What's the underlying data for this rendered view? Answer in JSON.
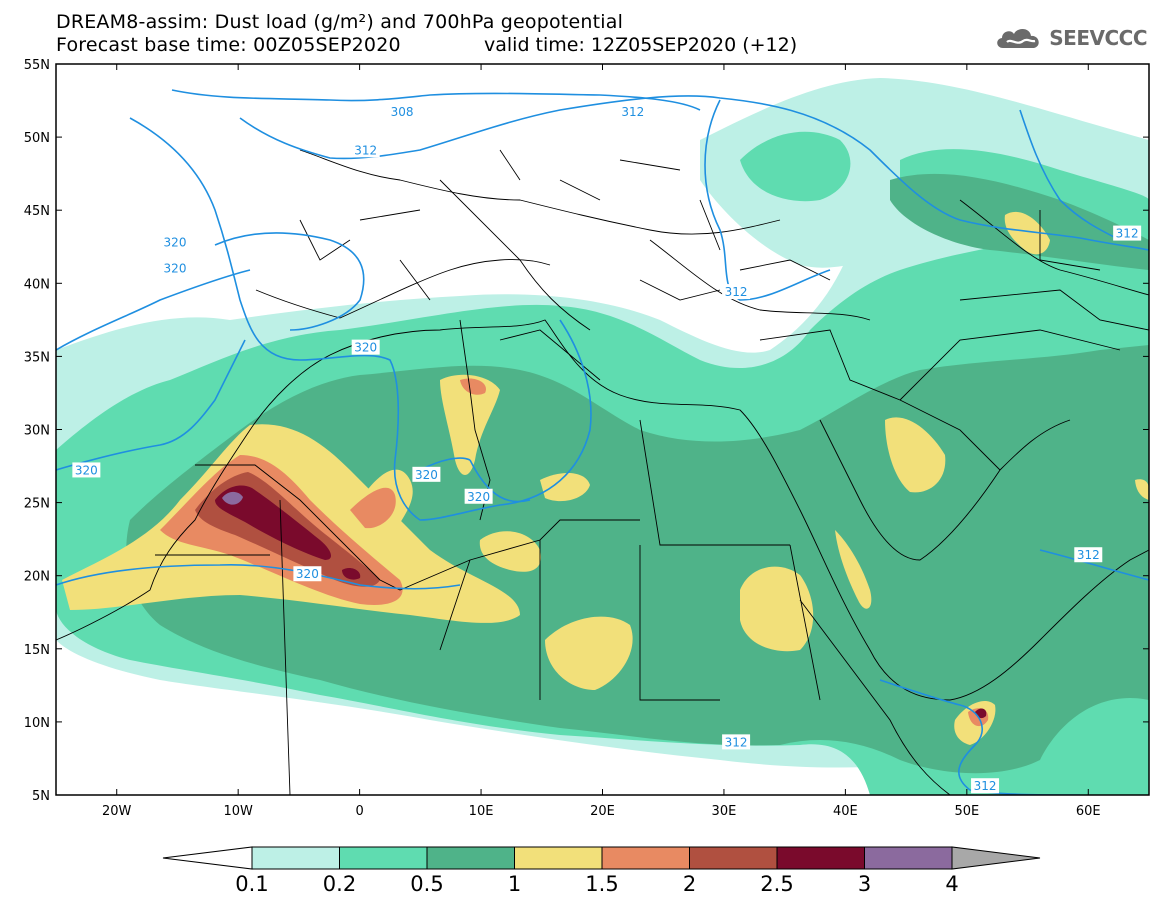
{
  "header": {
    "title_line1": "DREAM8-assim: Dust load (g/m²) and 700hPa geopotential",
    "title_line2_left": "Forecast base time: 00Z05SEP2020",
    "title_line2_right": "valid time: 12Z05SEP2020 (+12)",
    "logo_text": "SEEVCCC",
    "logo_icon": "cloud-icon"
  },
  "map": {
    "lon_range": [
      -25,
      65
    ],
    "lat_range": [
      5,
      55
    ],
    "lat_labels": [
      "55N",
      "50N",
      "45N",
      "40N",
      "35N",
      "30N",
      "25N",
      "20N",
      "15N",
      "10N",
      "5N"
    ],
    "lat_values": [
      55,
      50,
      45,
      40,
      35,
      30,
      25,
      20,
      15,
      10,
      5
    ],
    "lon_labels": [
      "20W",
      "10W",
      "0",
      "10E",
      "20E",
      "30E",
      "40E",
      "50E",
      "60E"
    ],
    "lon_values": [
      -20,
      -10,
      0,
      10,
      20,
      30,
      40,
      50,
      60
    ],
    "contour_labels": [
      {
        "text": "308",
        "lon": 3.5,
        "lat": 51.7
      },
      {
        "text": "312",
        "lon": 22.5,
        "lat": 51.7
      },
      {
        "text": "312",
        "lon": 0.5,
        "lat": 49.1
      },
      {
        "text": "320",
        "lon": -15.2,
        "lat": 42.8
      },
      {
        "text": "320",
        "lon": -15.2,
        "lat": 41.0
      },
      {
        "text": "312",
        "lon": 31.0,
        "lat": 39.4
      },
      {
        "text": "312",
        "lon": 63.2,
        "lat": 43.4
      },
      {
        "text": "320",
        "lon": 0.5,
        "lat": 35.6
      },
      {
        "text": "320",
        "lon": -22.5,
        "lat": 27.2
      },
      {
        "text": "320",
        "lon": 5.5,
        "lat": 26.9
      },
      {
        "text": "320",
        "lon": 9.8,
        "lat": 25.4
      },
      {
        "text": "320",
        "lon": -4.3,
        "lat": 20.1
      },
      {
        "text": "312",
        "lon": 60.0,
        "lat": 21.4
      },
      {
        "text": "312",
        "lon": 31.0,
        "lat": 8.6
      },
      {
        "text": "312",
        "lon": 51.5,
        "lat": 5.6
      }
    ]
  },
  "colorbar": {
    "labels": [
      "0.1",
      "0.2",
      "0.5",
      "1",
      "1.5",
      "2",
      "2.5",
      "3",
      "4"
    ],
    "colors": [
      "#bdf0e6",
      "#5fdcb0",
      "#4fb389",
      "#f2e07a",
      "#e88a62",
      "#b05040",
      "#7a0a2c",
      "#8b6a9e"
    ],
    "under_color": "#ffffff",
    "over_color": "#a8a8a8"
  },
  "legend_colors": {
    "contour": "#1f8fe0",
    "land_bg": "#ffffff"
  }
}
